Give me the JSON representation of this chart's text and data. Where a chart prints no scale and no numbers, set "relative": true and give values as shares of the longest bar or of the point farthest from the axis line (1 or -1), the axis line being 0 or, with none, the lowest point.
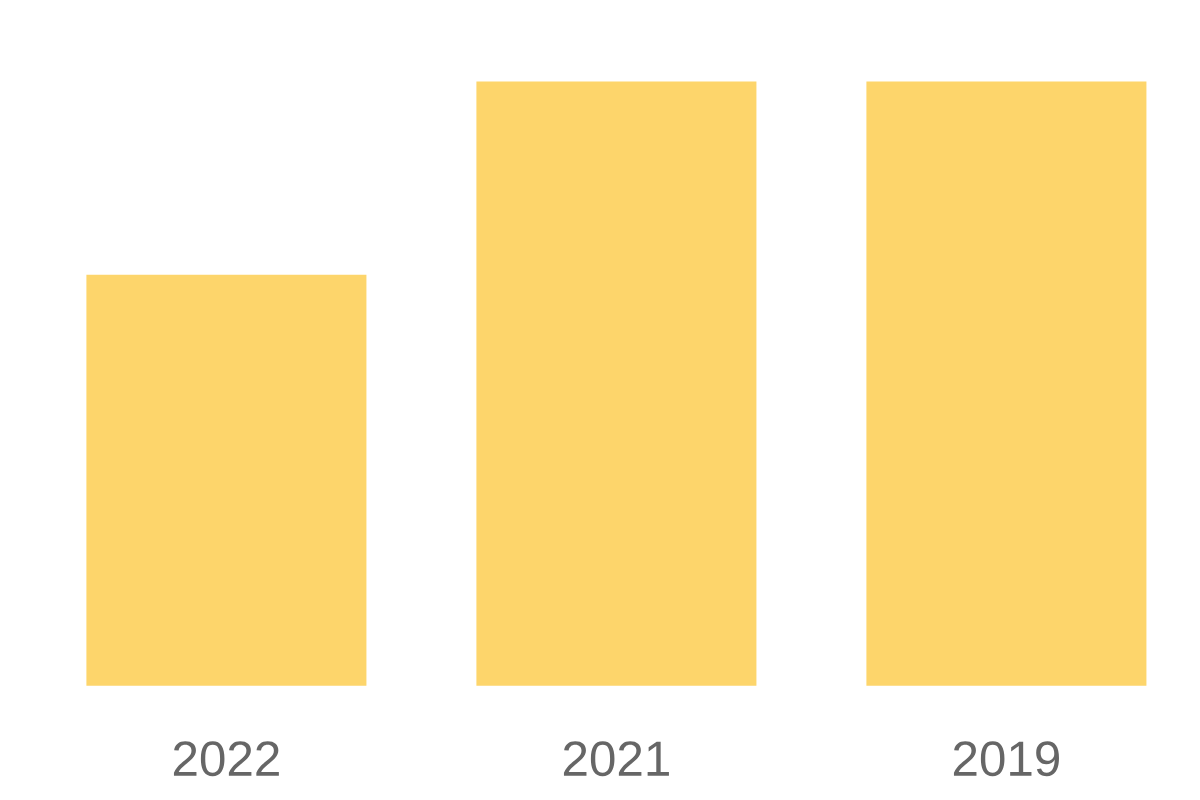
{
  "chart_data": {
    "type": "bar",
    "categories": [
      "2022",
      "2021",
      "2019"
    ],
    "values": [
      0.68,
      1,
      1
    ],
    "color": "#fdd56b",
    "relative": true
  }
}
